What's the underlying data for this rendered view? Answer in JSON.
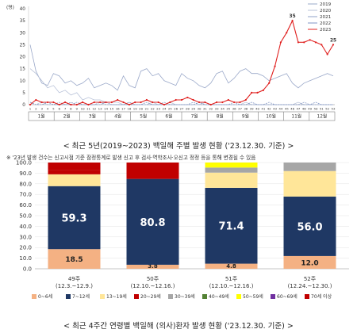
{
  "line_chart": {
    "y_unit": "(명)",
    "caption": "< 최근 5년(2019~2023) 백일해 주별 발생 현황 ('23.12.30. 기준) >"
  },
  "bar_chart": {
    "note": "※ '23년 발생 건수는 신고시점 기준 잠정통계로 발생 신고 후 검사·역학조사·오신고 정정 등을 통해 변경될 수 있음",
    "caption": "< 최근 4주간 연령별 백일해 (의사)환자 발생 현황 ('23.12.30. 기준) >"
  },
  "colors": {
    "y2019": "#9aa8c9",
    "y2020": "#b9c3d9",
    "y2021": "#8fa0c8",
    "y2022": "#7f94c4",
    "y2023": "#e0201f",
    "age_0_6": "#f4b183",
    "age_7_12": "#1f3864",
    "age_13_19": "#ffe699",
    "age_20_29": "#c00000",
    "age_30_39": "#a6a6a6",
    "age_40_49": "#548235",
    "age_50_59": "#ffff00",
    "age_60_69": "#7030a0",
    "age_70plus": "#c00000"
  },
  "chart_data": [
    {
      "type": "line",
      "title": "",
      "xlabel": "",
      "ylabel": "(명)",
      "ylim": [
        0,
        40
      ],
      "yticks": [
        0,
        5,
        10,
        15,
        20,
        25,
        30,
        35,
        40
      ],
      "x": [
        1,
        2,
        3,
        4,
        5,
        6,
        7,
        8,
        9,
        10,
        11,
        12,
        13,
        14,
        15,
        16,
        17,
        18,
        19,
        20,
        21,
        22,
        23,
        24,
        25,
        26,
        27,
        28,
        29,
        30,
        31,
        32,
        33,
        34,
        35,
        36,
        37,
        38,
        39,
        40,
        41,
        42,
        43,
        44,
        45,
        46,
        47,
        48,
        49,
        50,
        51,
        52,
        53
      ],
      "xticks": [
        1,
        2,
        3,
        4,
        5,
        6,
        7,
        8,
        9,
        10,
        11,
        12,
        13,
        14,
        15,
        16,
        17,
        18,
        19,
        20,
        21,
        22,
        23,
        24,
        25,
        26,
        27,
        28,
        29,
        30,
        31,
        32,
        33,
        34,
        35,
        36,
        37,
        38,
        39,
        40,
        41,
        42,
        43,
        44,
        45,
        46,
        47,
        48,
        49,
        50,
        51,
        52,
        53
      ],
      "months": [
        "1월",
        "2월",
        "3월",
        "4월",
        "5월",
        "6월",
        "7월",
        "8월",
        "9월",
        "10월",
        "11월",
        "12월"
      ],
      "legend_position": "top-right",
      "series": [
        {
          "name": "2019",
          "values": [
            25,
            14,
            9,
            8,
            13,
            12,
            9,
            10,
            8,
            9,
            11,
            7,
            8,
            9,
            8,
            6,
            12,
            8,
            7,
            14,
            15,
            12,
            13,
            10,
            9,
            8,
            13,
            11,
            10,
            8,
            7,
            9,
            13,
            14,
            9,
            11,
            14,
            15,
            13,
            13,
            12,
            10,
            11,
            12,
            13,
            9,
            7,
            9,
            10,
            11,
            12,
            13,
            12
          ]
        },
        {
          "name": "2020",
          "values": [
            15,
            13,
            10,
            7,
            8,
            5,
            6,
            4,
            5,
            2,
            3,
            2,
            2,
            1,
            1,
            1,
            0,
            1,
            0,
            0,
            0,
            1,
            0,
            0,
            1,
            0,
            0,
            0,
            0,
            0,
            1,
            0,
            0,
            0,
            0,
            0,
            0,
            1,
            0,
            0,
            0,
            0,
            0,
            0,
            0,
            0,
            1,
            0,
            0,
            0,
            0,
            0,
            0
          ]
        },
        {
          "name": "2021",
          "values": [
            1,
            0,
            1,
            0,
            0,
            1,
            0,
            0,
            1,
            0,
            0,
            0,
            1,
            0,
            0,
            0,
            0,
            1,
            0,
            0,
            0,
            0,
            0,
            1,
            0,
            0,
            0,
            0,
            1,
            0,
            0,
            0,
            0,
            0,
            0,
            1,
            0,
            0,
            0,
            0,
            0,
            1,
            0,
            0,
            0,
            0,
            0,
            1,
            0,
            0,
            0,
            0,
            0
          ]
        },
        {
          "name": "2022",
          "values": [
            1,
            0,
            0,
            1,
            0,
            0,
            0,
            1,
            0,
            0,
            0,
            0,
            0,
            1,
            0,
            0,
            0,
            0,
            0,
            0,
            1,
            0,
            0,
            0,
            0,
            0,
            0,
            0,
            0,
            1,
            0,
            0,
            0,
            0,
            0,
            0,
            0,
            0,
            1,
            0,
            0,
            0,
            0,
            0,
            0,
            0,
            0,
            0,
            0,
            1,
            0,
            0,
            0
          ]
        },
        {
          "name": "2023",
          "values": [
            0,
            2,
            1,
            1,
            1,
            0,
            1,
            0,
            0,
            1,
            0,
            1,
            1,
            1,
            1,
            2,
            1,
            0,
            1,
            1,
            2,
            1,
            1,
            0,
            1,
            2,
            2,
            3,
            2,
            1,
            1,
            0,
            1,
            1,
            2,
            1,
            1,
            2,
            5,
            5,
            6,
            9,
            16,
            26,
            30,
            35,
            26,
            26,
            27,
            26,
            25,
            21,
            25
          ],
          "data_labels": [
            {
              "x": 46,
              "label": "35"
            },
            {
              "x": 53,
              "label": "25"
            }
          ]
        }
      ]
    },
    {
      "type": "bar",
      "stacked": true,
      "title": "",
      "xlabel": "",
      "ylabel": "",
      "ylim": [
        0,
        100
      ],
      "yticks": [
        "0.0",
        "10.0",
        "20.0",
        "30.0",
        "40.0",
        "50.0",
        "60.0",
        "70.0",
        "80.0",
        "90.0",
        "100.0"
      ],
      "categories": [
        {
          "week": "49주",
          "range": "(12.3.~12.9.)"
        },
        {
          "week": "50주",
          "range": "(12.10.~12.16.)"
        },
        {
          "week": "51주",
          "range": "(12.10.~12.16.)"
        },
        {
          "week": "52주",
          "range": "(12.24.~12.30.)"
        }
      ],
      "legend_position": "bottom",
      "series": [
        {
          "name": "0~6세",
          "values": [
            18.5,
            3.8,
            4.8,
            12.0
          ],
          "labels": [
            "18.5",
            "3.8",
            "4.8",
            "12.0"
          ]
        },
        {
          "name": "7~12세",
          "values": [
            59.3,
            80.8,
            71.4,
            56.0
          ],
          "labels": [
            "59.3",
            "80.8",
            "71.4",
            "56.0"
          ]
        },
        {
          "name": "13~19세",
          "values": [
            11.1,
            0,
            14.3,
            24.0
          ]
        },
        {
          "name": "20~29세",
          "values": [
            3.7,
            0,
            0,
            0
          ]
        },
        {
          "name": "30~39세",
          "values": [
            0,
            0,
            4.8,
            8.0
          ]
        },
        {
          "name": "40~49세",
          "values": [
            0,
            0,
            0,
            0
          ]
        },
        {
          "name": "50~59세",
          "values": [
            0,
            0,
            4.7,
            0
          ]
        },
        {
          "name": "60~69세",
          "values": [
            0,
            0,
            0,
            0
          ]
        },
        {
          "name": "70세 이상",
          "values": [
            7.4,
            15.4,
            0,
            0
          ]
        }
      ]
    }
  ]
}
